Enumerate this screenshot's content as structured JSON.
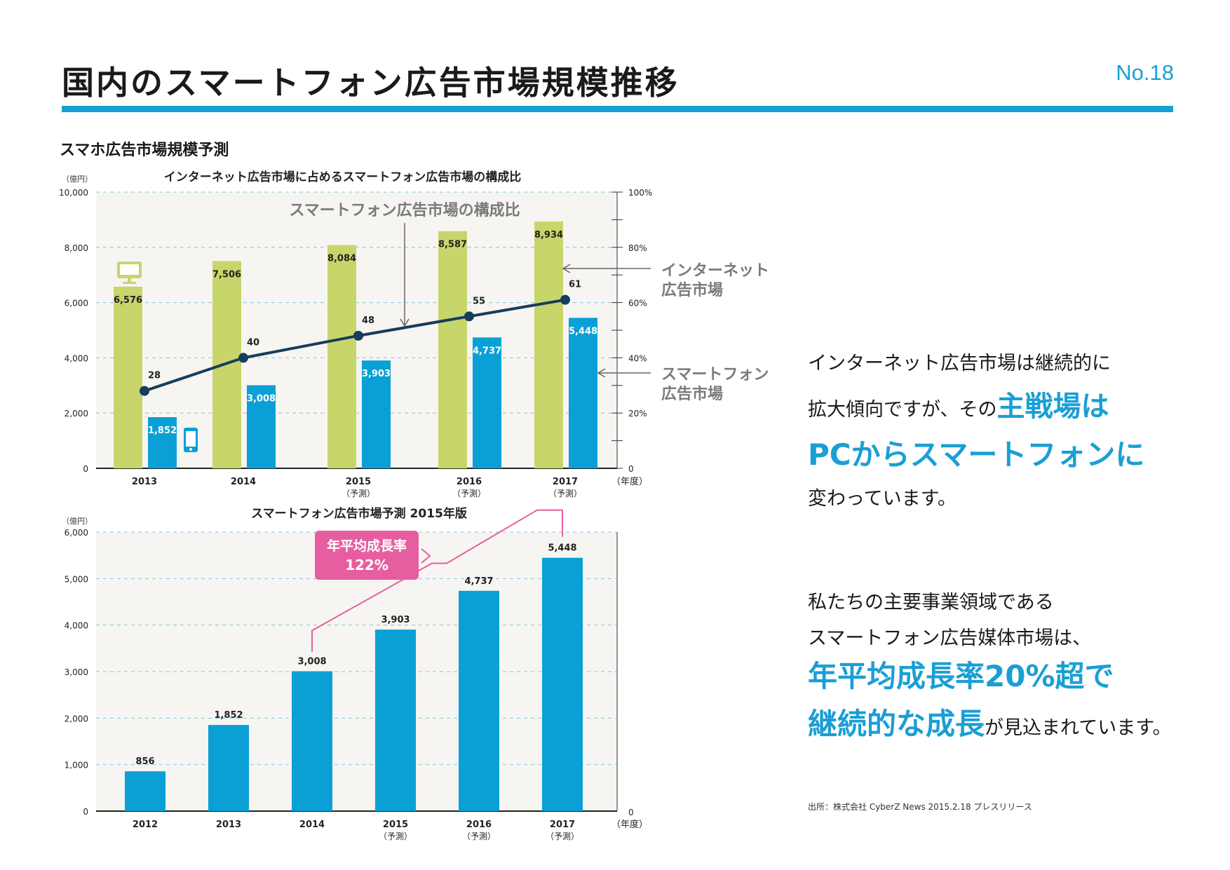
{
  "header": {
    "title": "国内のスマートフォン広告市場規模推移",
    "page_number": "No.18",
    "section_title": "スマホ広告市場規模予測"
  },
  "colors": {
    "accent": "#1a9fd4",
    "internet_bar": "#c8d56b",
    "smartphone_bar": "#0aa0d6",
    "line": "#163d5c",
    "callout": "#e75ea0",
    "plot_bg": "#f7f5f2"
  },
  "chart_data": [
    {
      "type": "bar",
      "title": "インターネット広告市場に占めるスマートフォン広告市場の構成比",
      "y_unit": "（億円）",
      "x_unit": "（年度）",
      "categories": [
        "2013",
        "2014",
        "2015",
        "2016",
        "2017"
      ],
      "category_notes": [
        "",
        "",
        "（予測）",
        "（予測）",
        "（予測）"
      ],
      "ylim": [
        0,
        10000
      ],
      "y_ticks": [
        "0",
        "2,000",
        "4,000",
        "6,000",
        "8,000",
        "10,000"
      ],
      "y2lim": [
        0,
        100
      ],
      "y2_ticks": [
        "0",
        "20%",
        "40%",
        "60%",
        "80%",
        "100%"
      ],
      "series": [
        {
          "name": "インターネット広告市場",
          "values": [
            6576,
            7506,
            8084,
            8587,
            8934
          ],
          "labels": [
            "6,576",
            "7,506",
            "8,084",
            "8,587",
            "8,934"
          ]
        },
        {
          "name": "スマートフォン広告市場",
          "values": [
            1852,
            3008,
            3903,
            4737,
            5448
          ],
          "labels": [
            "1,852",
            "3,008",
            "3,903",
            "4,737",
            "5,448"
          ]
        },
        {
          "name": "スマートフォン広告市場の構成比",
          "axis": "right",
          "values": [
            28,
            40,
            48,
            55,
            61
          ],
          "labels": [
            "28",
            "40",
            "48",
            "55",
            "61"
          ]
        }
      ],
      "annotations": {
        "line_label": "スマートフォン広告市場の構成比",
        "internet_label": [
          "インターネット",
          "広告市場"
        ],
        "smartphone_label": [
          "スマートフォン",
          "広告市場"
        ]
      },
      "icons": [
        "desktop-monitor-icon",
        "smartphone-icon"
      ],
      "grid": true
    },
    {
      "type": "bar",
      "title": "スマートフォン広告市場予測 2015年版",
      "y_unit": "（億円）",
      "x_unit": "（年度）",
      "categories": [
        "2012",
        "2013",
        "2014",
        "2015",
        "2016",
        "2017"
      ],
      "category_notes": [
        "",
        "",
        "",
        "（予測）",
        "（予測）",
        "（予測）"
      ],
      "ylim": [
        0,
        6000
      ],
      "y_ticks": [
        "0",
        "1,000",
        "2,000",
        "3,000",
        "4,000",
        "5,000",
        "6,000"
      ],
      "y2_ticks": [
        "0"
      ],
      "series": [
        {
          "name": "スマートフォン広告市場",
          "values": [
            856,
            1852,
            3008,
            3903,
            4737,
            5448
          ],
          "labels": [
            "856",
            "1,852",
            "3,008",
            "3,903",
            "4,737",
            "5,448"
          ]
        }
      ],
      "callout": {
        "line1": "年平均成長率",
        "line2": "122%",
        "from": "2014",
        "to": "2017"
      },
      "grid": true
    }
  ],
  "text_blocks": {
    "para1": {
      "line1": "インターネット広告市場は継続的に",
      "line2_normal": "拡大傾向ですが、その",
      "line2_highlight": "主戦場は",
      "line3_highlight": "PCからスマートフォンに",
      "line4": "変わっています。"
    },
    "para2": {
      "line1": "私たちの主要事業領域である",
      "line2": "スマートフォン広告媒体市場は、",
      "line3_highlight": "年平均成長率20%超で",
      "line4_highlight": "継続的な成長",
      "line4_normal": "が見込まれています。"
    }
  },
  "source": "出所：株式会社 CyberZ News 2015.2.18 プレスリリース"
}
